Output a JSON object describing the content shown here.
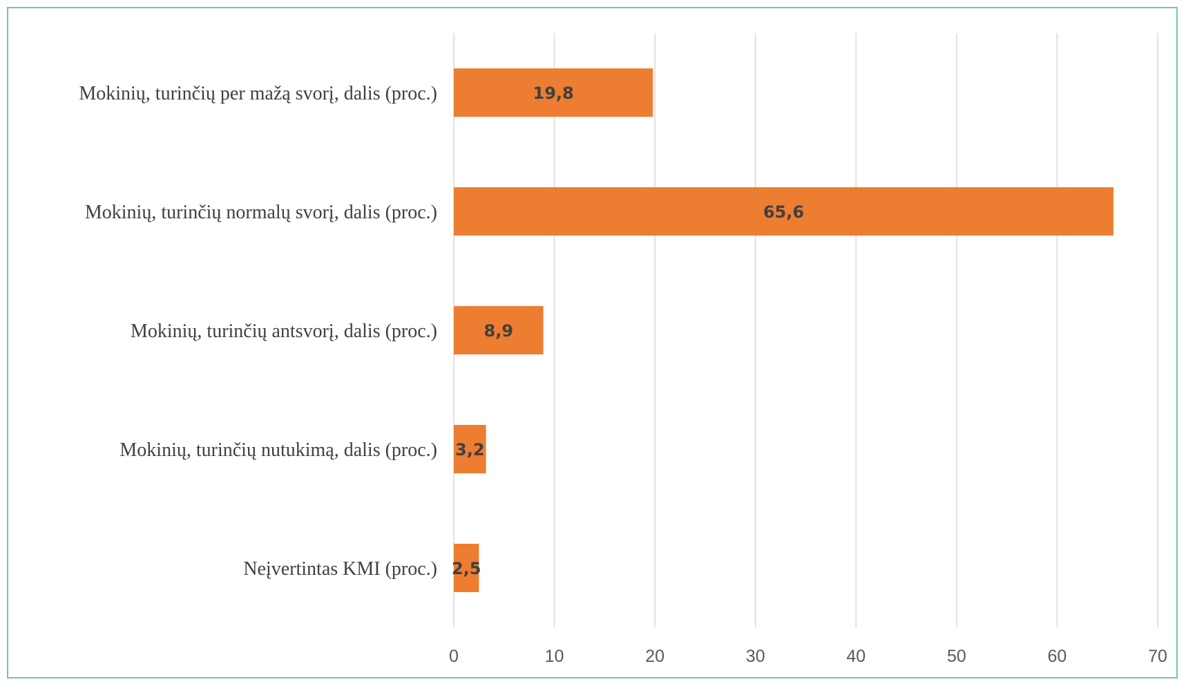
{
  "chart_data": {
    "type": "bar",
    "orientation": "horizontal",
    "title": "",
    "xlabel": "",
    "ylabel": "",
    "categories": [
      "Mokinių, turinčių per mažą svorį, dalis (proc.)",
      "Mokinių, turinčių normalų svorį, dalis (proc.)",
      "Mokinių, turinčių antsvorį, dalis (proc.)",
      "Mokinių, turinčių nutukimą, dalis (proc.)",
      "Neįvertintas KMI (proc.)"
    ],
    "values": [
      19.8,
      65.6,
      8.9,
      3.2,
      2.5
    ],
    "data_labels": [
      "19,8",
      "65,6",
      "8,9",
      "3,2",
      "2,5"
    ],
    "xlim": [
      0,
      70
    ],
    "ticks": [
      0,
      10,
      20,
      30,
      40,
      50,
      60,
      70
    ],
    "tick_labels": [
      "0",
      "10",
      "20",
      "30",
      "40",
      "50",
      "60",
      "70"
    ],
    "grid": "vertical",
    "legend": "none",
    "bar_color": "#ed7d31",
    "frame_color": "#6fc4b9"
  }
}
